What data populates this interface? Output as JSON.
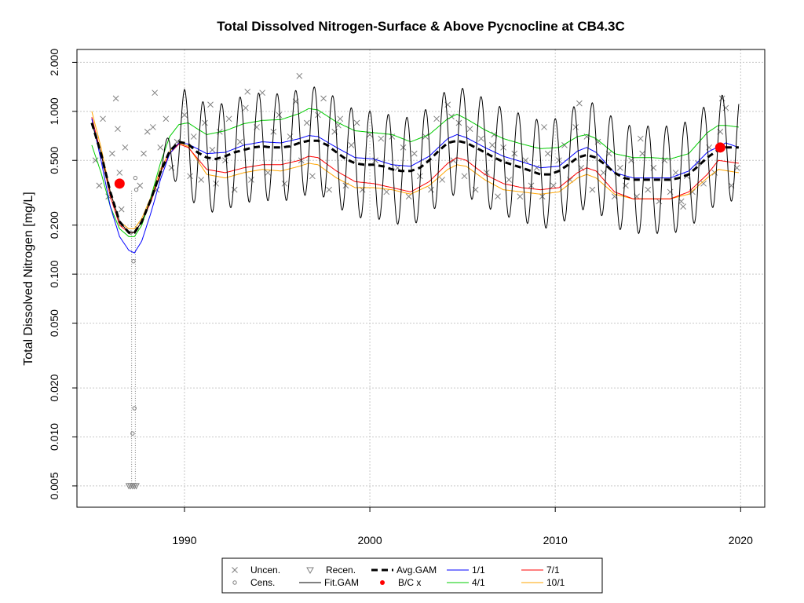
{
  "chart_data": {
    "type": "scatter",
    "title": "Total Dissolved Nitrogen-Surface & Above Pycnocline at CB4.3C",
    "xlabel": "",
    "ylabel": "Total Dissolved Nitrogen [mg/L]",
    "xlim": [
      1984.2,
      2021.3
    ],
    "ylim": [
      0.0037,
      2.4
    ],
    "y_scale": "log",
    "grid": true,
    "legend_position": "bottom-center",
    "x_ticks": [
      1990,
      2000,
      2010,
      2020
    ],
    "x_tick_labels": [
      "1990",
      "2000",
      "2010",
      "2020"
    ],
    "y_ticks": [
      0.005,
      0.01,
      0.02,
      0.05,
      0.1,
      0.2,
      0.5,
      1.0,
      2.0
    ],
    "y_tick_labels": [
      "0.005",
      "0.010",
      "0.020",
      "0.050",
      "0.100",
      "0.200",
      "0.500",
      "1.000",
      "2.000"
    ],
    "legend": [
      {
        "label": "Uncen.",
        "kind": "x-marker",
        "color": "#7f7f7f"
      },
      {
        "label": "Recen.",
        "kind": "triangle-marker",
        "color": "#7f7f7f"
      },
      {
        "label": "Avg.GAM",
        "kind": "dashed-line",
        "color": "#000000"
      },
      {
        "label": "1/1",
        "kind": "line",
        "color": "#0000ff"
      },
      {
        "label": "7/1",
        "kind": "line",
        "color": "#ff0000"
      },
      {
        "label": "Cens.",
        "kind": "circle-marker",
        "color": "#7f7f7f"
      },
      {
        "label": "Fit.GAM",
        "kind": "line",
        "color": "#000000"
      },
      {
        "label": "B/C x",
        "kind": "dot-marker",
        "color": "#ff0000"
      },
      {
        "label": "4/1",
        "kind": "line",
        "color": "#00cc00"
      },
      {
        "label": "10/1",
        "kind": "line",
        "color": "#ffa500"
      }
    ],
    "colors": {
      "observations": "#7f7f7f",
      "avg_gam": "#000000",
      "fit_gam": "#000000",
      "s_1_1": "#0000ff",
      "s_4_1": "#00cc00",
      "s_7_1": "#ff0000",
      "s_10_1": "#ffa500",
      "bc": "#ff0000"
    },
    "avg_gam": {
      "x": [
        1985.0,
        1985.5,
        1986.0,
        1986.5,
        1987.0,
        1987.3,
        1987.7,
        1988.2,
        1988.7,
        1989.2,
        1989.7,
        1990.2,
        1990.7,
        1991.2,
        1991.7,
        1992.2,
        1992.7,
        1993.2,
        1993.7,
        1994.2,
        1994.7,
        1995.2,
        1995.7,
        1996.2,
        1996.7,
        1997.2,
        1997.7,
        1998.2,
        1998.7,
        1999.2,
        1999.7,
        2000.2,
        2000.7,
        2001.2,
        2001.7,
        2002.2,
        2002.7,
        2003.2,
        2003.7,
        2004.2,
        2004.7,
        2005.2,
        2005.7,
        2006.2,
        2006.7,
        2007.2,
        2007.7,
        2008.2,
        2008.7,
        2009.2,
        2009.7,
        2010.2,
        2010.7,
        2011.2,
        2011.7,
        2012.2,
        2012.7,
        2013.2,
        2013.7,
        2014.2,
        2014.7,
        2015.2,
        2015.7,
        2016.2,
        2016.7,
        2017.2,
        2017.7,
        2018.2,
        2018.7,
        2019.2,
        2019.9
      ],
      "y": [
        0.85,
        0.55,
        0.32,
        0.21,
        0.18,
        0.18,
        0.21,
        0.29,
        0.42,
        0.57,
        0.65,
        0.63,
        0.56,
        0.52,
        0.51,
        0.53,
        0.56,
        0.58,
        0.6,
        0.61,
        0.6,
        0.6,
        0.61,
        0.64,
        0.66,
        0.66,
        0.62,
        0.56,
        0.51,
        0.48,
        0.47,
        0.47,
        0.46,
        0.44,
        0.43,
        0.43,
        0.45,
        0.5,
        0.57,
        0.64,
        0.66,
        0.64,
        0.6,
        0.56,
        0.52,
        0.49,
        0.47,
        0.45,
        0.43,
        0.41,
        0.41,
        0.43,
        0.47,
        0.52,
        0.54,
        0.52,
        0.47,
        0.42,
        0.39,
        0.38,
        0.38,
        0.38,
        0.38,
        0.38,
        0.39,
        0.41,
        0.46,
        0.52,
        0.57,
        0.6,
        0.6
      ]
    },
    "series_1_1": {
      "x": [
        1985.0,
        1985.5,
        1986.0,
        1986.5,
        1987.0,
        1987.3,
        1987.7,
        1988.2,
        1988.7,
        1989.2,
        1989.7,
        1990.2,
        1991.2,
        1992.2,
        1993.2,
        1994.2,
        1995.2,
        1996.2,
        1996.7,
        1997.2,
        1998.2,
        1999.2,
        2000.2,
        2001.2,
        2002.2,
        2003.2,
        2004.2,
        2004.7,
        2005.2,
        2006.2,
        2007.2,
        2008.2,
        2009.2,
        2010.2,
        2011.2,
        2011.7,
        2012.2,
        2013.2,
        2014.2,
        2015.2,
        2016.2,
        2017.2,
        2018.2,
        2019.2,
        2019.9
      ],
      "y": [
        0.9,
        0.5,
        0.26,
        0.17,
        0.14,
        0.135,
        0.16,
        0.24,
        0.38,
        0.55,
        0.64,
        0.63,
        0.55,
        0.56,
        0.62,
        0.65,
        0.64,
        0.68,
        0.71,
        0.7,
        0.6,
        0.52,
        0.51,
        0.47,
        0.46,
        0.53,
        0.68,
        0.72,
        0.69,
        0.6,
        0.53,
        0.49,
        0.45,
        0.46,
        0.57,
        0.6,
        0.56,
        0.42,
        0.39,
        0.39,
        0.39,
        0.43,
        0.56,
        0.64,
        0.6
      ]
    },
    "series_4_1": {
      "x": [
        1985.0,
        1985.5,
        1986.0,
        1986.5,
        1987.0,
        1987.3,
        1987.7,
        1988.2,
        1988.7,
        1989.2,
        1989.7,
        1990.2,
        1990.7,
        1991.2,
        1992.2,
        1993.2,
        1994.2,
        1995.2,
        1996.2,
        1996.7,
        1997.2,
        1998.2,
        1999.2,
        2000.2,
        2001.2,
        2002.2,
        2003.2,
        2004.2,
        2004.7,
        2005.2,
        2006.2,
        2007.2,
        2008.2,
        2009.2,
        2010.2,
        2011.2,
        2011.7,
        2012.2,
        2013.2,
        2014.2,
        2015.2,
        2016.2,
        2017.2,
        2018.2,
        2018.8,
        2019.2,
        2019.9
      ],
      "y": [
        0.62,
        0.42,
        0.26,
        0.19,
        0.17,
        0.17,
        0.2,
        0.3,
        0.48,
        0.7,
        0.83,
        0.85,
        0.78,
        0.72,
        0.76,
        0.84,
        0.88,
        0.89,
        0.97,
        1.04,
        1.02,
        0.86,
        0.76,
        0.74,
        0.72,
        0.65,
        0.72,
        0.9,
        0.96,
        0.9,
        0.77,
        0.68,
        0.63,
        0.59,
        0.6,
        0.7,
        0.72,
        0.68,
        0.55,
        0.52,
        0.52,
        0.51,
        0.55,
        0.74,
        0.82,
        0.82,
        0.8
      ]
    },
    "series_7_1": {
      "x": [
        1985.0,
        1985.5,
        1986.0,
        1986.5,
        1987.0,
        1987.3,
        1987.7,
        1988.2,
        1988.7,
        1989.2,
        1989.7,
        1990.2,
        1991.2,
        1992.2,
        1993.2,
        1994.2,
        1995.2,
        1996.2,
        1996.7,
        1997.2,
        1998.2,
        1999.2,
        2000.2,
        2001.2,
        2002.2,
        2003.2,
        2004.2,
        2004.7,
        2005.2,
        2006.2,
        2007.2,
        2008.2,
        2009.2,
        2010.2,
        2011.2,
        2011.7,
        2012.2,
        2013.2,
        2014.2,
        2015.2,
        2016.2,
        2017.2,
        2018.2,
        2018.8,
        2019.9
      ],
      "y": [
        0.92,
        0.55,
        0.3,
        0.2,
        0.18,
        0.18,
        0.21,
        0.28,
        0.42,
        0.55,
        0.63,
        0.6,
        0.44,
        0.42,
        0.45,
        0.47,
        0.47,
        0.5,
        0.53,
        0.52,
        0.43,
        0.37,
        0.36,
        0.34,
        0.32,
        0.37,
        0.48,
        0.52,
        0.5,
        0.41,
        0.36,
        0.34,
        0.33,
        0.34,
        0.42,
        0.45,
        0.43,
        0.32,
        0.29,
        0.29,
        0.29,
        0.32,
        0.41,
        0.5,
        0.48
      ]
    },
    "series_10_1": {
      "x": [
        1985.0,
        1985.5,
        1986.0,
        1986.5,
        1987.0,
        1987.3,
        1987.7,
        1988.2,
        1988.7,
        1989.2,
        1989.7,
        1990.2,
        1991.2,
        1992.2,
        1993.2,
        1994.2,
        1995.2,
        1996.2,
        1996.7,
        1997.2,
        1998.2,
        1999.2,
        2000.2,
        2001.2,
        2002.2,
        2003.2,
        2004.2,
        2004.7,
        2005.2,
        2006.2,
        2007.2,
        2008.2,
        2009.2,
        2010.2,
        2011.2,
        2011.7,
        2012.2,
        2013.2,
        2014.2,
        2015.2,
        2016.2,
        2017.2,
        2018.2,
        2018.8,
        2019.9
      ],
      "y": [
        1.0,
        0.6,
        0.32,
        0.21,
        0.19,
        0.19,
        0.22,
        0.3,
        0.44,
        0.57,
        0.64,
        0.61,
        0.41,
        0.39,
        0.42,
        0.44,
        0.43,
        0.46,
        0.48,
        0.47,
        0.39,
        0.34,
        0.34,
        0.33,
        0.31,
        0.35,
        0.44,
        0.47,
        0.46,
        0.38,
        0.33,
        0.32,
        0.31,
        0.32,
        0.39,
        0.41,
        0.39,
        0.31,
        0.29,
        0.29,
        0.29,
        0.31,
        0.39,
        0.44,
        0.42
      ]
    },
    "bc_points": {
      "x": [
        1986.5,
        2018.9
      ],
      "y": [
        0.36,
        0.6
      ]
    },
    "censored": {
      "x": [
        1987.3,
        1987.2,
        1987.25,
        1987.1,
        1987.4,
        1987.35
      ],
      "y": [
        0.015,
        0.0105,
        0.12,
        0.18,
        0.33,
        0.39
      ]
    },
    "recensored": {
      "x": [
        1987.0,
        1987.1,
        1987.2,
        1987.3,
        1987.4
      ],
      "y": [
        0.005,
        0.005,
        0.005,
        0.005,
        0.005
      ]
    },
    "uncensored": {
      "x": [
        1985.2,
        1985.4,
        1985.6,
        1985.9,
        1986.1,
        1986.3,
        1986.5,
        1986.6,
        1986.8,
        1987.6,
        1987.8,
        1988.0,
        1988.3,
        1988.5,
        1988.7,
        1989.0,
        1989.3,
        1989.6,
        1990.0,
        1990.3,
        1990.5,
        1990.9,
        1991.1,
        1991.4,
        1991.7,
        1991.9,
        1992.2,
        1992.4,
        1992.7,
        1993.0,
        1993.3,
        1993.6,
        1993.9,
        1994.2,
        1994.5,
        1994.8,
        1995.1,
        1995.4,
        1995.7,
        1996.0,
        1996.3,
        1996.6,
        1996.9,
        1997.2,
        1997.5,
        1997.8,
        1998.1,
        1998.4,
        1998.7,
        1999.0,
        1999.3,
        1999.6,
        2000.0,
        2000.3,
        2000.6,
        2000.9,
        2001.2,
        2001.5,
        2001.8,
        2002.1,
        2002.4,
        2002.7,
        2003.0,
        2003.3,
        2003.6,
        2003.9,
        2004.2,
        2004.5,
        2004.8,
        2005.1,
        2005.4,
        2005.7,
        2006.0,
        2006.3,
        2006.6,
        2006.9,
        2007.2,
        2007.5,
        2007.8,
        2008.1,
        2008.4,
        2008.7,
        2009.0,
        2009.3,
        2009.6,
        2009.9,
        2010.2,
        2010.5,
        2010.8,
        2011.1,
        2011.4,
        2011.7,
        2012.0,
        2012.3,
        2012.6,
        2012.9,
        2013.2,
        2013.5,
        2013.8,
        2014.1,
        2014.4,
        2014.7,
        2015.0,
        2015.3,
        2015.6,
        2015.9,
        2016.2,
        2016.5,
        2016.8,
        2017.1,
        2017.4,
        2017.7,
        2018.0,
        2018.3,
        2018.6,
        2018.9,
        2019.2,
        2019.5,
        2019.8,
        1988.4,
        1991.5,
        1996.2,
        1998.3,
        2004.4,
        2009.4,
        2011.3,
        2014.6,
        2016.9,
        2019.0,
        1986.4,
        1993.4,
        2006.7
      ],
      "y": [
        0.5,
        0.35,
        0.9,
        0.3,
        0.55,
        1.2,
        0.42,
        0.25,
        0.6,
        0.35,
        0.55,
        0.75,
        0.8,
        0.33,
        0.6,
        0.9,
        0.45,
        0.65,
        0.95,
        0.4,
        0.7,
        0.38,
        0.85,
        1.1,
        0.36,
        0.75,
        0.5,
        0.9,
        0.33,
        0.65,
        1.05,
        0.38,
        0.8,
        1.3,
        0.42,
        0.75,
        0.95,
        0.36,
        0.7,
        1.15,
        0.5,
        0.85,
        0.4,
        0.95,
        1.2,
        0.33,
        0.75,
        0.9,
        0.35,
        0.62,
        0.85,
        0.33,
        0.72,
        0.5,
        0.68,
        0.32,
        0.7,
        0.45,
        0.6,
        0.3,
        0.55,
        0.4,
        0.7,
        0.33,
        0.9,
        0.38,
        1.1,
        0.5,
        0.85,
        0.4,
        0.78,
        0.33,
        0.68,
        0.42,
        0.62,
        0.3,
        0.6,
        0.38,
        0.55,
        0.3,
        0.5,
        0.35,
        0.45,
        0.3,
        0.55,
        0.35,
        0.5,
        0.62,
        0.38,
        0.8,
        0.45,
        0.7,
        0.33,
        0.65,
        0.42,
        0.55,
        0.3,
        0.45,
        0.35,
        0.5,
        0.3,
        0.55,
        0.33,
        0.45,
        0.28,
        0.5,
        0.32,
        0.42,
        0.28,
        0.4,
        0.32,
        0.48,
        0.36,
        0.6,
        0.42,
        0.75,
        1.05,
        0.35,
        0.45,
        1.3,
        0.58,
        1.65,
        0.82,
        0.93,
        0.8,
        1.12,
        0.68,
        0.26,
        1.2,
        0.78,
        1.32,
        0.72
      ]
    },
    "fit_gam_oscillation": {
      "amplitude_log": 0.33,
      "period_years": 1.0,
      "start_year": 1990.0
    }
  }
}
